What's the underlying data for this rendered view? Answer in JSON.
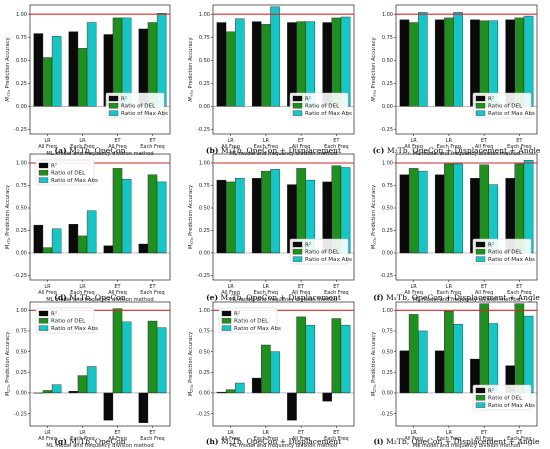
{
  "colors": {
    "r2": "#0a0a0a",
    "del": "#1f8f1f",
    "maxabs": "#18c4c4",
    "refline": "#d62728"
  },
  "shared": {
    "categories": [
      [
        "LR",
        "All Freq"
      ],
      [
        "LR",
        "Each Freq"
      ],
      [
        "ET",
        "All Freq"
      ],
      [
        "ET",
        "Each Freq"
      ]
    ],
    "xlabel": "ML model and frequency division method",
    "legend": [
      "R²",
      "Ratio of DEL",
      "Ratio of Max Abs"
    ]
  },
  "chart_data": [
    {
      "type": "bar",
      "ylabel": "M_YTb Prediction Accuracy",
      "ylim": [
        -0.3,
        1.1
      ],
      "yticks": [
        "-0.25",
        "0.00",
        "0.25",
        "0.50",
        "0.75",
        "1.00"
      ],
      "categories": [
        "LR All Freq",
        "LR Each Freq",
        "ET All Freq",
        "ET Each Freq"
      ],
      "series": [
        {
          "name": "R²",
          "values": [
            0.79,
            0.81,
            0.78,
            0.84
          ]
        },
        {
          "name": "Ratio of DEL",
          "values": [
            0.53,
            0.63,
            0.96,
            0.91
          ]
        },
        {
          "name": "Ratio of Max Abs",
          "values": [
            0.76,
            0.91,
            0.96,
            1.01
          ]
        }
      ],
      "caption": {
        "label": "(a)",
        "text": " M₂Tb, OpeCon"
      }
    },
    {
      "type": "bar",
      "ylabel": "M_YTb Prediction Accuracy",
      "ylim": [
        -0.3,
        1.1
      ],
      "yticks": [
        "-0.25",
        "0.00",
        "0.25",
        "0.50",
        "0.75",
        "1.00"
      ],
      "categories": [
        "LR All Freq",
        "LR Each Freq",
        "ET All Freq",
        "ET Each Freq"
      ],
      "series": [
        {
          "name": "R²",
          "values": [
            0.91,
            0.92,
            0.91,
            0.91
          ]
        },
        {
          "name": "Ratio of DEL",
          "values": [
            0.81,
            0.89,
            0.92,
            0.96
          ]
        },
        {
          "name": "Ratio of Max Abs",
          "values": [
            0.95,
            1.08,
            0.92,
            0.97
          ]
        }
      ],
      "caption": {
        "label": "(b)",
        "text": " M₂Tb, OpeCon + Displacement"
      }
    },
    {
      "type": "bar",
      "ylabel": "M_YTb Prediction Accuracy",
      "ylim": [
        -0.3,
        1.1
      ],
      "yticks": [
        "-0.25",
        "0.00",
        "0.25",
        "0.50",
        "0.75",
        "1.00"
      ],
      "categories": [
        "LR All Freq",
        "LR Each Freq",
        "ET All Freq",
        "ET Each Freq"
      ],
      "series": [
        {
          "name": "R²",
          "values": [
            0.94,
            0.94,
            0.94,
            0.94
          ]
        },
        {
          "name": "Ratio of DEL",
          "values": [
            0.91,
            0.96,
            0.93,
            0.96
          ]
        },
        {
          "name": "Ratio of Max Abs",
          "values": [
            1.02,
            1.02,
            0.93,
            0.98
          ]
        }
      ],
      "caption": {
        "label": "(c)",
        "text": " M₂Tb, OpeCon + Displacement + Angle"
      }
    },
    {
      "type": "bar",
      "ylabel": "M_XTb Prediction Accuracy",
      "ylim": [
        -0.3,
        1.1
      ],
      "yticks": [
        "-0.25",
        "0.00",
        "0.25",
        "0.50",
        "0.75",
        "1.00"
      ],
      "categories": [
        "LR All Freq",
        "LR Each Freq",
        "ET All Freq",
        "ET Each Freq"
      ],
      "series": [
        {
          "name": "R²",
          "values": [
            0.31,
            0.32,
            0.08,
            0.1
          ]
        },
        {
          "name": "Ratio of DEL",
          "values": [
            0.06,
            0.19,
            0.94,
            0.87
          ]
        },
        {
          "name": "Ratio of Max Abs",
          "values": [
            0.27,
            0.47,
            0.82,
            0.79
          ]
        }
      ],
      "caption": {
        "label": "(d)",
        "text": " MₓTb, OpeCon"
      }
    },
    {
      "type": "bar",
      "ylabel": "M_XTb Prediction Accuracy",
      "ylim": [
        -0.3,
        1.1
      ],
      "yticks": [
        "-0.25",
        "0.00",
        "0.25",
        "0.50",
        "0.75",
        "1.00"
      ],
      "categories": [
        "LR All Freq",
        "LR Each Freq",
        "ET All Freq",
        "ET Each Freq"
      ],
      "series": [
        {
          "name": "R²",
          "values": [
            0.81,
            0.83,
            0.76,
            0.79
          ]
        },
        {
          "name": "Ratio of DEL",
          "values": [
            0.79,
            0.91,
            0.94,
            0.97
          ]
        },
        {
          "name": "Ratio of Max Abs",
          "values": [
            0.83,
            0.93,
            0.81,
            0.95
          ]
        }
      ],
      "caption": {
        "label": "(e)",
        "text": " MₓTb, OpeCon + Displacement"
      }
    },
    {
      "type": "bar",
      "ylabel": "M_XTb Prediction Accuracy",
      "ylim": [
        -0.3,
        1.1
      ],
      "yticks": [
        "-0.25",
        "0.00",
        "0.25",
        "0.50",
        "0.75",
        "1.00"
      ],
      "categories": [
        "LR All Freq",
        "LR Each Freq",
        "ET All Freq",
        "ET Each Freq"
      ],
      "series": [
        {
          "name": "R²",
          "values": [
            0.87,
            0.87,
            0.83,
            0.83
          ]
        },
        {
          "name": "Ratio of DEL",
          "values": [
            0.94,
            0.99,
            0.98,
            0.99
          ]
        },
        {
          "name": "Ratio of Max Abs",
          "values": [
            0.91,
            0.99,
            0.76,
            1.03
          ]
        }
      ],
      "caption": {
        "label": "(f)",
        "text": " MₓTb, OpeCon + Displacement + Angle"
      }
    },
    {
      "type": "bar",
      "ylabel": "M_ZTb Prediction Accuracy",
      "ylim": [
        -0.4,
        1.1
      ],
      "yticks": [
        "-0.25",
        "0.00",
        "0.25",
        "0.50",
        "0.75",
        "1.00"
      ],
      "categories": [
        "LR All Freq",
        "LR Each Freq",
        "ET All Freq",
        "ET Each Freq"
      ],
      "series": [
        {
          "name": "R²",
          "values": [
            0.0,
            0.02,
            -0.33,
            -0.36
          ]
        },
        {
          "name": "Ratio of DEL",
          "values": [
            0.03,
            0.21,
            1.02,
            0.87
          ]
        },
        {
          "name": "Ratio of Max Abs",
          "values": [
            0.1,
            0.32,
            0.86,
            0.79
          ]
        }
      ],
      "caption": {
        "label": "(g)",
        "text": " M₂Tb, OpeCon"
      }
    },
    {
      "type": "bar",
      "ylabel": "M_ZTb Prediction Accuracy",
      "ylim": [
        -0.4,
        1.1
      ],
      "yticks": [
        "-0.25",
        "0.00",
        "0.25",
        "0.50",
        "0.75",
        "1.00"
      ],
      "categories": [
        "LR All Freq",
        "LR Each Freq",
        "ET All Freq",
        "ET Each Freq"
      ],
      "series": [
        {
          "name": "R²",
          "values": [
            0.01,
            0.18,
            -0.33,
            -0.1
          ]
        },
        {
          "name": "Ratio of DEL",
          "values": [
            0.04,
            0.58,
            0.92,
            0.9
          ]
        },
        {
          "name": "Ratio of Max Abs",
          "values": [
            0.12,
            0.5,
            0.82,
            0.82
          ]
        }
      ],
      "caption": {
        "label": "(h)",
        "text": " M₂Tb, OpeCon + Displacement"
      }
    },
    {
      "type": "bar",
      "ylabel": "M_ZTb Prediction Accuracy",
      "ylim": [
        -0.4,
        1.1
      ],
      "yticks": [
        "-0.25",
        "0.00",
        "0.25",
        "0.50",
        "0.75",
        "1.00"
      ],
      "categories": [
        "LR All Freq",
        "LR Each Freq",
        "ET All Freq",
        "ET Each Freq"
      ],
      "series": [
        {
          "name": "R²",
          "values": [
            0.51,
            0.51,
            0.41,
            0.33
          ]
        },
        {
          "name": "Ratio of DEL",
          "values": [
            0.95,
            0.99,
            1.08,
            1.08
          ]
        },
        {
          "name": "Ratio of Max Abs",
          "values": [
            0.75,
            0.83,
            0.84,
            0.93
          ]
        }
      ],
      "caption": {
        "label": "(i)",
        "text": " M₂Tb, OpeCon + Displacement + Angle"
      }
    }
  ]
}
